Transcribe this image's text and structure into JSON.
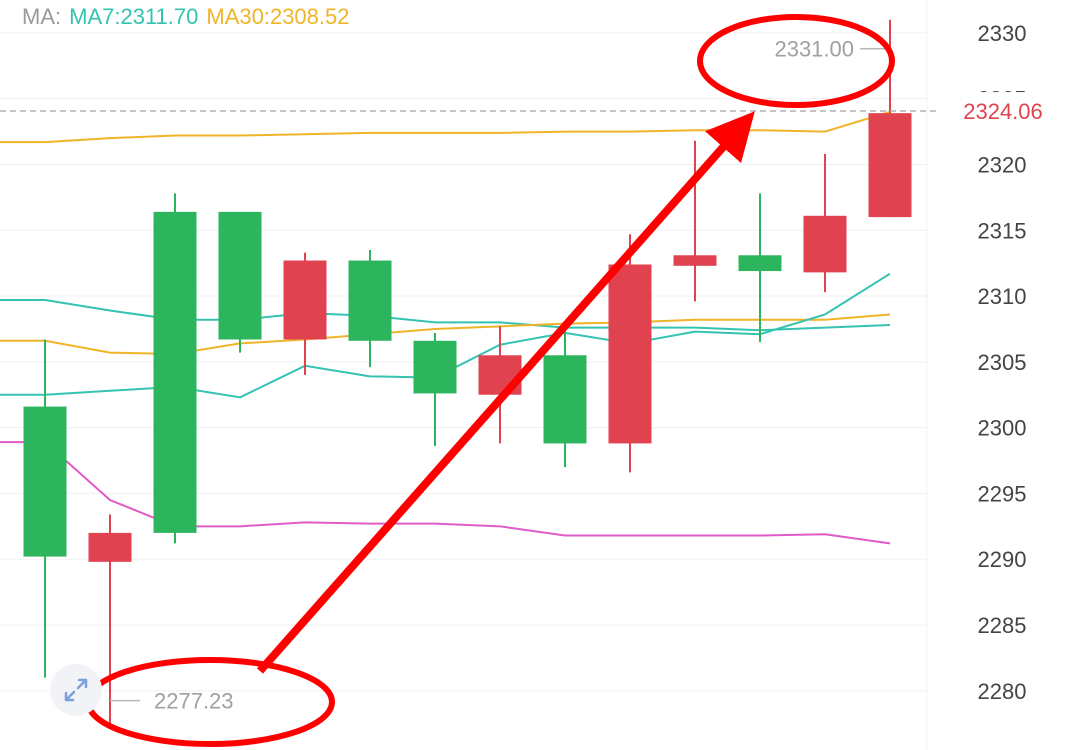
{
  "legend": {
    "prefix": "MA:",
    "ma7": "MA7:2311.70",
    "ma30": "MA30:2308.52"
  },
  "colors": {
    "up": "#2db55d",
    "down": "#e0434f",
    "ma7": "#34c3b0",
    "ma30": "#f0b429",
    "ma_long": "#e05ac8",
    "annotation": "#ff0000",
    "grid": "#f0f0f0",
    "last_price": "#e0434f"
  },
  "chart_data": {
    "type": "candlestick",
    "ylim": [
      2275.5,
      2332.5
    ],
    "y_ticks": [
      2280,
      2285,
      2290,
      2295,
      2300,
      2305,
      2310,
      2315,
      2320,
      2325,
      2330
    ],
    "y_tick_labels": [
      "2280",
      "2285",
      "2290",
      "2295",
      "2300",
      "2305",
      "2310",
      "2315",
      "2320",
      "2325",
      "2330"
    ],
    "candles": [
      {
        "open": 2290.2,
        "close": 2301.6,
        "high": 2306.7,
        "low": 2281.0
      },
      {
        "open": 2292.0,
        "close": 2289.8,
        "high": 2293.4,
        "low": 2277.2
      },
      {
        "open": 2292.0,
        "close": 2316.4,
        "high": 2317.8,
        "low": 2291.2
      },
      {
        "open": 2306.7,
        "close": 2316.4,
        "high": 2316.4,
        "low": 2305.7
      },
      {
        "open": 2312.7,
        "close": 2306.7,
        "high": 2313.3,
        "low": 2304.0
      },
      {
        "open": 2306.6,
        "close": 2312.7,
        "high": 2313.5,
        "low": 2304.6
      },
      {
        "open": 2302.6,
        "close": 2306.6,
        "high": 2307.2,
        "low": 2298.6
      },
      {
        "open": 2305.5,
        "close": 2302.5,
        "high": 2307.7,
        "low": 2298.8
      },
      {
        "open": 2298.8,
        "close": 2305.5,
        "high": 2307.6,
        "low": 2297.0
      },
      {
        "open": 2312.4,
        "close": 2298.8,
        "high": 2314.7,
        "low": 2296.6
      },
      {
        "open": 2313.1,
        "close": 2312.3,
        "high": 2321.8,
        "low": 2309.6
      },
      {
        "open": 2311.9,
        "close": 2313.1,
        "high": 2317.8,
        "low": 2306.5
      },
      {
        "open": 2316.1,
        "close": 2311.8,
        "high": 2320.8,
        "low": 2310.3
      },
      {
        "open": 2323.9,
        "close": 2316.0,
        "high": 2331.0,
        "low": 2316.0
      }
    ],
    "ma_series": [
      {
        "values": [
          2309.7,
          2308.9,
          2308.2,
          2308.2,
          2308.7,
          2308.5,
          2308.0,
          2308.0,
          2307.6,
          2307.6,
          2307.6,
          2307.4,
          2307.6,
          2307.8
        ]
      },
      {
        "values": [
          2306.6,
          2305.7,
          2305.6,
          2306.4,
          2306.7,
          2307.1,
          2307.5,
          2307.7,
          2307.9,
          2308.0,
          2308.2,
          2308.2,
          2308.2,
          2308.6
        ]
      },
      {
        "values": [
          2302.5,
          2302.8,
          2303.1,
          2302.3,
          2304.7,
          2303.9,
          2303.8,
          2306.3,
          2307.2,
          2306.4,
          2307.3,
          2307.1,
          2308.6,
          2311.7
        ]
      },
      {
        "values": [
          2321.7,
          2322.0,
          2322.2,
          2322.2,
          2322.3,
          2322.4,
          2322.4,
          2322.4,
          2322.5,
          2322.5,
          2322.6,
          2322.6,
          2322.5,
          2324.0
        ]
      },
      {
        "values": [
          2298.9,
          2294.5,
          2292.5,
          2292.5,
          2292.8,
          2292.7,
          2292.7,
          2292.5,
          2291.8,
          2291.8,
          2291.8,
          2291.8,
          2291.9,
          2291.2
        ]
      }
    ],
    "extremes": {
      "high_label": "2331.00",
      "low_label": "2277.23"
    },
    "last_price": {
      "value": 2324.06,
      "label": "2324.06"
    }
  }
}
